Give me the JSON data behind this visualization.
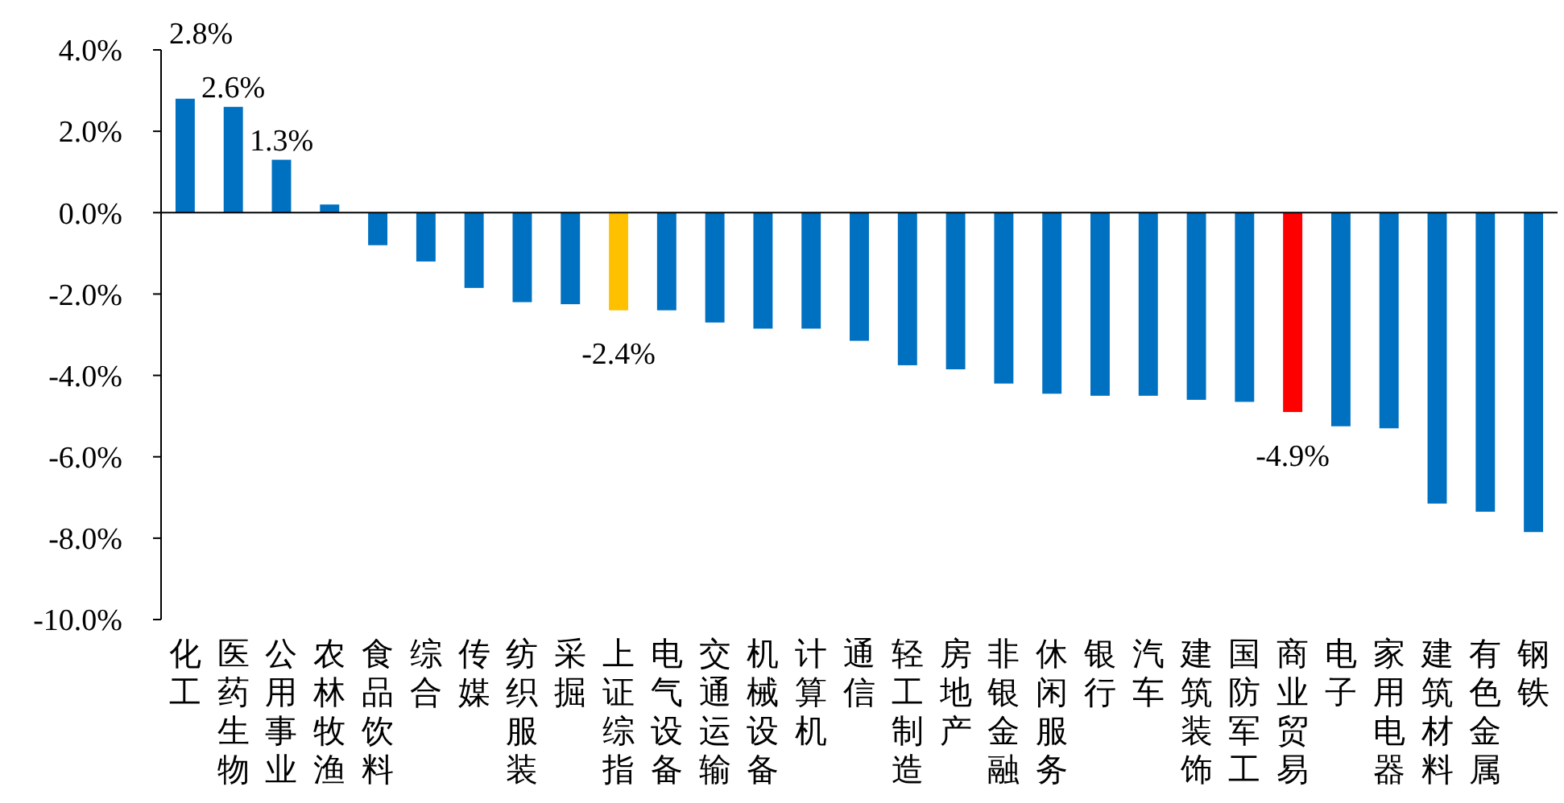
{
  "chart_data": {
    "type": "bar",
    "categories": [
      "化工",
      "医药生物",
      "公用事业",
      "农林牧渔",
      "食品饮料",
      "综合",
      "传媒",
      "纺织服装",
      "采掘",
      "上证综指",
      "电气设备",
      "交通运输",
      "机械设备",
      "计算机",
      "通信",
      "轻工制造",
      "房地产",
      "非银金融",
      "休闲服务",
      "银行",
      "汽车",
      "建筑装饰",
      "国防军工",
      "商业贸易",
      "电子",
      "家用电器",
      "建筑材料",
      "有色金属",
      "钢铁"
    ],
    "values": [
      2.8,
      2.6,
      1.3,
      0.2,
      -0.8,
      -1.2,
      -1.85,
      -2.2,
      -2.25,
      -2.4,
      -2.4,
      -2.7,
      -2.85,
      -2.85,
      -3.15,
      -3.75,
      -3.85,
      -4.2,
      -4.45,
      -4.5,
      -4.5,
      -4.6,
      -4.65,
      -4.9,
      -5.25,
      -5.3,
      -7.15,
      -7.35,
      -7.85
    ],
    "colors": [
      "#0070c0",
      "#0070c0",
      "#0070c0",
      "#0070c0",
      "#0070c0",
      "#0070c0",
      "#0070c0",
      "#0070c0",
      "#0070c0",
      "#ffc000",
      "#0070c0",
      "#0070c0",
      "#0070c0",
      "#0070c0",
      "#0070c0",
      "#0070c0",
      "#0070c0",
      "#0070c0",
      "#0070c0",
      "#0070c0",
      "#0070c0",
      "#0070c0",
      "#0070c0",
      "#ff0000",
      "#0070c0",
      "#0070c0",
      "#0070c0",
      "#0070c0",
      "#0070c0"
    ],
    "value_labels": [
      "2.8%",
      "2.6%",
      "1.3%",
      null,
      null,
      null,
      null,
      null,
      null,
      "-2.4%",
      null,
      null,
      null,
      null,
      null,
      null,
      null,
      null,
      null,
      null,
      null,
      null,
      null,
      "-4.9%",
      null,
      null,
      null,
      null,
      null
    ],
    "ylim": [
      -10,
      4
    ],
    "yticks": [
      {
        "value": 4,
        "label": "4.0%"
      },
      {
        "value": 2,
        "label": "2.0%"
      },
      {
        "value": 0,
        "label": "0.0%"
      },
      {
        "value": -2,
        "label": "-2.0%"
      },
      {
        "value": -4,
        "label": "-4.0%"
      },
      {
        "value": -6,
        "label": "-6.0%"
      },
      {
        "value": -8,
        "label": "-8.0%"
      },
      {
        "value": -10,
        "label": "-10.0%"
      }
    ],
    "ylabel": null
  }
}
